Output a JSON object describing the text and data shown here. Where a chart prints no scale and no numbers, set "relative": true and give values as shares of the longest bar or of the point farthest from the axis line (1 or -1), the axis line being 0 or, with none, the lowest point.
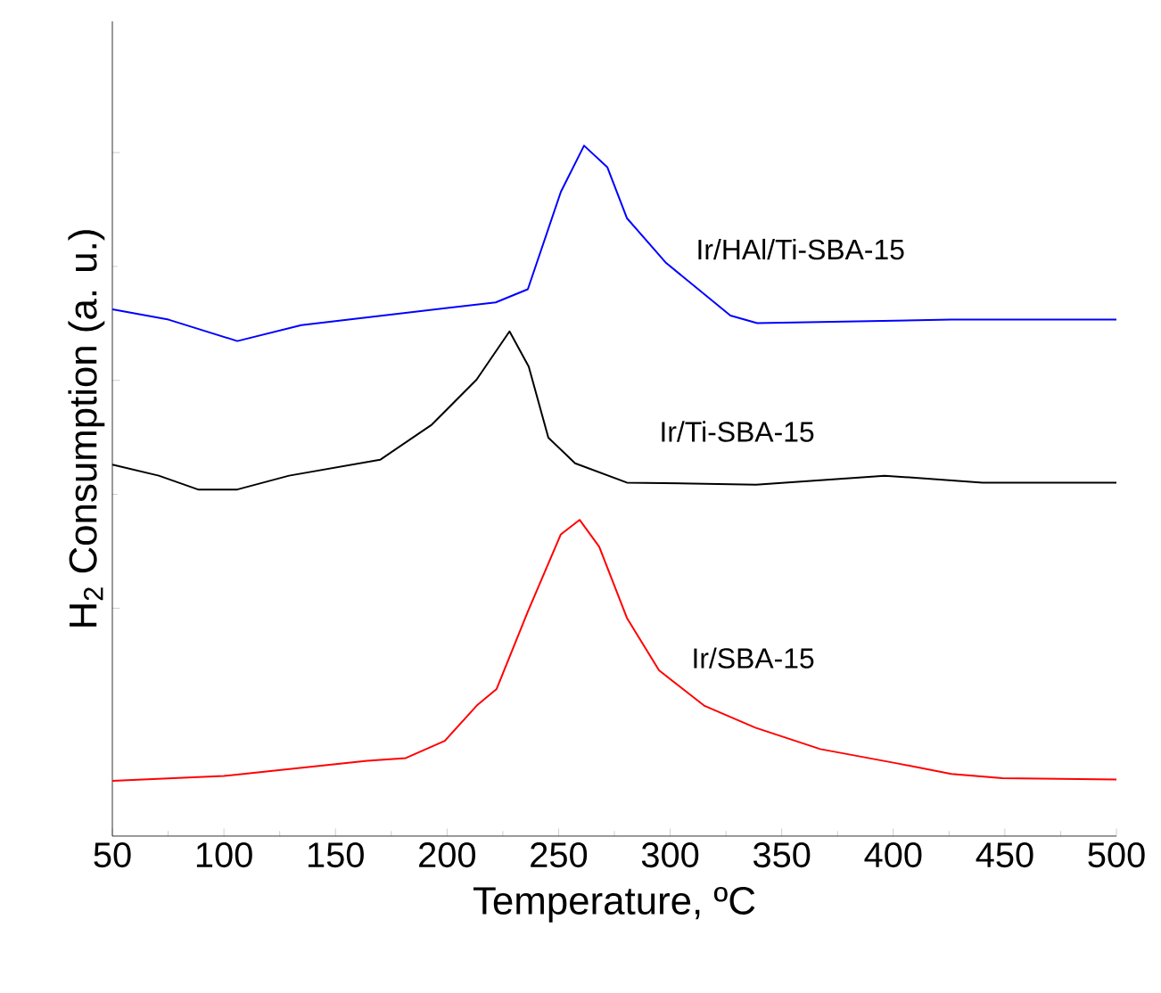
{
  "chart_data": {
    "type": "line",
    "xlabel": "Temperature, ºC",
    "ylabel": "H$_{2}$ Consumption (a. u.)",
    "relative": true,
    "tick_labels": "x",
    "xlim": [
      50,
      500
    ],
    "xticks": [
      50,
      100,
      150,
      200,
      250,
      300,
      350,
      400,
      450,
      500
    ],
    "series": [
      {
        "name": "Ir/HAl/Ti-SBA-15",
        "color": "#0000ff",
        "x": [
          50,
          75.2,
          106,
          134.7,
          221.8,
          236.2,
          251,
          261.4,
          271.8,
          280.6,
          298.2,
          327,
          339,
          426,
          500
        ],
        "values": [
          0.763,
          0.748,
          0.717,
          0.74,
          0.773,
          0.792,
          0.933,
          1.0,
          0.969,
          0.895,
          0.83,
          0.754,
          0.743,
          0.748,
          0.748
        ]
      },
      {
        "name": "Ir/Ti-SBA-15",
        "color": "#000000",
        "x": [
          50,
          70.8,
          88.4,
          106,
          129.2,
          170,
          193.2,
          213.2,
          228,
          236.6,
          245.4,
          257.4,
          280.6,
          338.5,
          396.1,
          440,
          500
        ],
        "values": [
          0.538,
          0.522,
          0.502,
          0.502,
          0.522,
          0.545,
          0.596,
          0.661,
          0.731,
          0.68,
          0.577,
          0.54,
          0.512,
          0.509,
          0.522,
          0.512,
          0.512
        ]
      },
      {
        "name": "Ir/SBA-15",
        "color": "#ff0000",
        "x": [
          50,
          100,
          164.2,
          181.5,
          199,
          213.3,
          222.2,
          236.2,
          251,
          259.4,
          268.2,
          280.6,
          295,
          315.2,
          338.2,
          367.3,
          402.2,
          426,
          448.9,
          500
        ],
        "values": [
          0.08,
          0.087,
          0.109,
          0.113,
          0.138,
          0.189,
          0.213,
          0.325,
          0.437,
          0.458,
          0.419,
          0.316,
          0.24,
          0.189,
          0.157,
          0.126,
          0.105,
          0.09,
          0.084,
          0.082
        ]
      }
    ]
  }
}
